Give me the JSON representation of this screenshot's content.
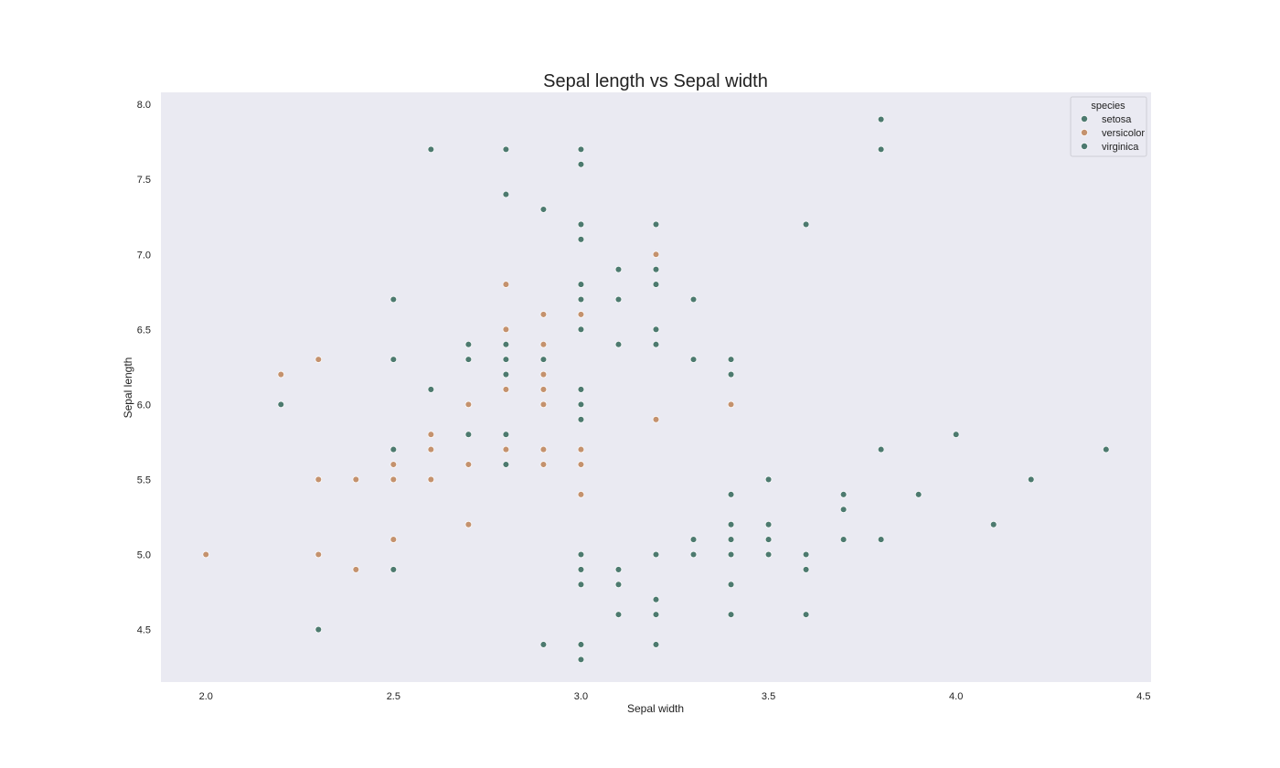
{
  "chart_data": {
    "type": "scatter",
    "title": "Sepal length vs Sepal width",
    "xlabel": "Sepal width",
    "ylabel": "Sepal length",
    "xlim": [
      1.88,
      4.52
    ],
    "ylim": [
      4.15,
      8.08
    ],
    "xticks": [
      "2.0",
      "2.5",
      "3.0",
      "3.5",
      "4.0",
      "4.5"
    ],
    "yticks": [
      "4.5",
      "5.0",
      "5.5",
      "6.0",
      "6.5",
      "7.0",
      "7.5",
      "8.0"
    ],
    "grid": false,
    "background": "#eaeaf2",
    "legend": {
      "title": "species",
      "placement": "top-right",
      "entries": [
        "setosa",
        "versicolor",
        "virginica"
      ]
    },
    "colors": {
      "setosa": "#4d7a6f",
      "versicolor": "#c4926e",
      "virginica": "#4d7a6f"
    },
    "series": [
      {
        "name": "setosa",
        "points": [
          [
            3.0,
            5.0
          ],
          [
            3.0,
            4.9
          ],
          [
            3.0,
            4.8
          ],
          [
            3.0,
            4.4
          ],
          [
            3.0,
            4.3
          ],
          [
            2.9,
            4.4
          ],
          [
            2.3,
            4.5
          ],
          [
            3.1,
            4.9
          ],
          [
            3.1,
            4.8
          ],
          [
            3.1,
            4.6
          ],
          [
            3.2,
            5.0
          ],
          [
            3.2,
            4.7
          ],
          [
            3.2,
            4.6
          ],
          [
            3.2,
            4.4
          ],
          [
            3.3,
            5.1
          ],
          [
            3.3,
            5.0
          ],
          [
            3.4,
            5.4
          ],
          [
            3.4,
            5.2
          ],
          [
            3.4,
            5.1
          ],
          [
            3.4,
            5.0
          ],
          [
            3.4,
            4.8
          ],
          [
            3.4,
            4.6
          ],
          [
            3.5,
            5.5
          ],
          [
            3.5,
            5.2
          ],
          [
            3.5,
            5.1
          ],
          [
            3.5,
            5.0
          ],
          [
            3.6,
            5.0
          ],
          [
            3.6,
            4.9
          ],
          [
            3.6,
            4.6
          ],
          [
            3.7,
            5.4
          ],
          [
            3.7,
            5.3
          ],
          [
            3.7,
            5.1
          ],
          [
            3.8,
            5.7
          ],
          [
            3.8,
            5.1
          ],
          [
            3.9,
            5.4
          ],
          [
            4.0,
            5.8
          ],
          [
            4.1,
            5.2
          ],
          [
            4.2,
            5.5
          ],
          [
            4.4,
            5.7
          ],
          [
            3.4,
            6.3
          ],
          [
            3.4,
            6.2
          ]
        ]
      },
      {
        "name": "versicolor",
        "points": [
          [
            2.0,
            5.0
          ],
          [
            2.2,
            6.2
          ],
          [
            2.3,
            6.3
          ],
          [
            2.3,
            5.5
          ],
          [
            2.3,
            5.0
          ],
          [
            2.4,
            5.5
          ],
          [
            2.4,
            4.9
          ],
          [
            2.5,
            5.6
          ],
          [
            2.5,
            5.5
          ],
          [
            2.5,
            5.1
          ],
          [
            2.6,
            5.8
          ],
          [
            2.6,
            5.7
          ],
          [
            2.6,
            5.5
          ],
          [
            2.7,
            6.0
          ],
          [
            2.7,
            5.6
          ],
          [
            2.7,
            5.2
          ],
          [
            2.8,
            6.8
          ],
          [
            2.8,
            6.5
          ],
          [
            2.8,
            6.1
          ],
          [
            2.8,
            5.7
          ],
          [
            2.9,
            6.6
          ],
          [
            2.9,
            6.4
          ],
          [
            2.9,
            6.2
          ],
          [
            2.9,
            6.1
          ],
          [
            2.9,
            6.0
          ],
          [
            2.9,
            5.7
          ],
          [
            2.9,
            5.6
          ],
          [
            3.0,
            6.6
          ],
          [
            3.0,
            5.7
          ],
          [
            3.0,
            5.6
          ],
          [
            3.0,
            5.4
          ],
          [
            3.2,
            7.0
          ],
          [
            3.2,
            5.9
          ],
          [
            3.4,
            6.0
          ]
        ]
      },
      {
        "name": "virginica",
        "points": [
          [
            2.2,
            6.0
          ],
          [
            2.5,
            6.7
          ],
          [
            2.5,
            6.3
          ],
          [
            2.5,
            5.7
          ],
          [
            2.5,
            4.9
          ],
          [
            2.6,
            7.7
          ],
          [
            2.6,
            6.1
          ],
          [
            2.7,
            6.4
          ],
          [
            2.7,
            6.3
          ],
          [
            2.7,
            5.8
          ],
          [
            2.8,
            7.7
          ],
          [
            2.8,
            7.4
          ],
          [
            2.8,
            6.4
          ],
          [
            2.8,
            6.3
          ],
          [
            2.8,
            6.2
          ],
          [
            2.8,
            5.8
          ],
          [
            2.8,
            5.6
          ],
          [
            2.9,
            7.3
          ],
          [
            2.9,
            6.3
          ],
          [
            3.0,
            7.7
          ],
          [
            3.0,
            7.6
          ],
          [
            3.0,
            7.2
          ],
          [
            3.0,
            7.1
          ],
          [
            3.0,
            6.8
          ],
          [
            3.0,
            6.7
          ],
          [
            3.0,
            6.5
          ],
          [
            3.0,
            6.1
          ],
          [
            3.0,
            6.0
          ],
          [
            3.0,
            5.9
          ],
          [
            3.1,
            6.9
          ],
          [
            3.1,
            6.7
          ],
          [
            3.1,
            6.4
          ],
          [
            3.2,
            7.2
          ],
          [
            3.2,
            6.9
          ],
          [
            3.2,
            6.8
          ],
          [
            3.2,
            6.5
          ],
          [
            3.2,
            6.4
          ],
          [
            3.3,
            6.7
          ],
          [
            3.3,
            6.3
          ],
          [
            3.6,
            7.2
          ],
          [
            3.8,
            7.9
          ],
          [
            3.8,
            7.7
          ]
        ]
      }
    ]
  }
}
